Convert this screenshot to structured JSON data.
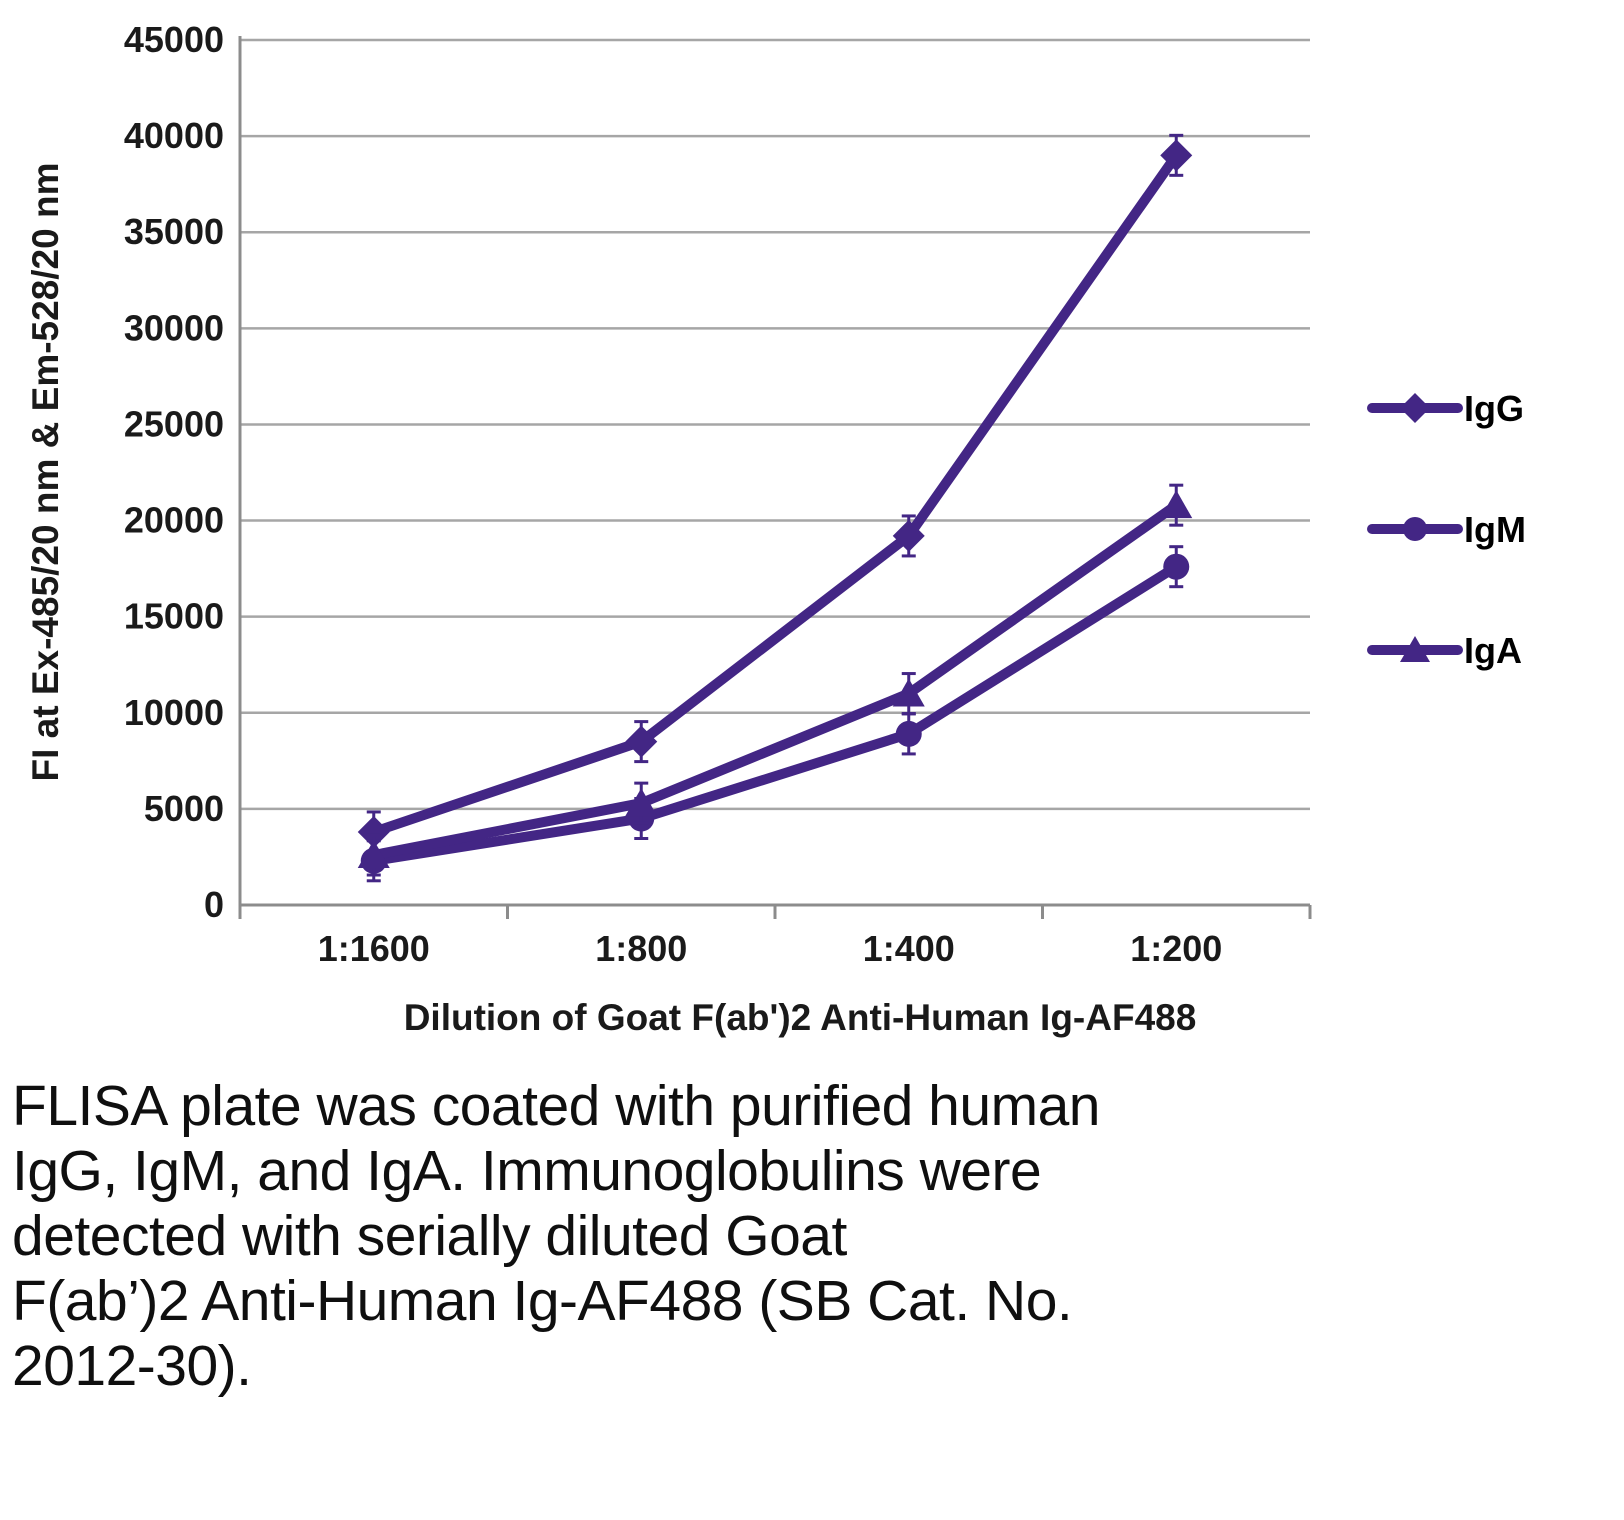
{
  "chart_data": {
    "type": "line",
    "title": "",
    "x_axis_title": "Dilution of Goat F(ab')2 Anti-Human Ig-AF488",
    "y_axis_title": "FI at Ex-485/20 nm & Em-528/20 nm",
    "categories": [
      "1:1600",
      "1:800",
      "1:400",
      "1:200"
    ],
    "y_min": 0,
    "y_max": 45000,
    "y_tick_step": 5000,
    "grid": true,
    "legend_position": "right",
    "series_color": "#432685",
    "grid_color": "#a6a6a6",
    "axis_color": "#8c8c8c",
    "series": [
      {
        "name": "IgG",
        "marker": "diamond",
        "values": [
          3800,
          8500,
          19200,
          39000
        ]
      },
      {
        "name": "IgM",
        "marker": "circle",
        "values": [
          2300,
          4500,
          8900,
          17600
        ]
      },
      {
        "name": "IgA",
        "marker": "triangle",
        "values": [
          2600,
          5300,
          11000,
          20800
        ]
      }
    ]
  },
  "caption": "FLISA plate was coated with purified human\nIgG, IgM, and IgA.  Immunoglobulins were\ndetected with serially diluted Goat\nF(ab’)2 Anti-Human Ig-AF488 (SB Cat. No.\n2012-30)."
}
